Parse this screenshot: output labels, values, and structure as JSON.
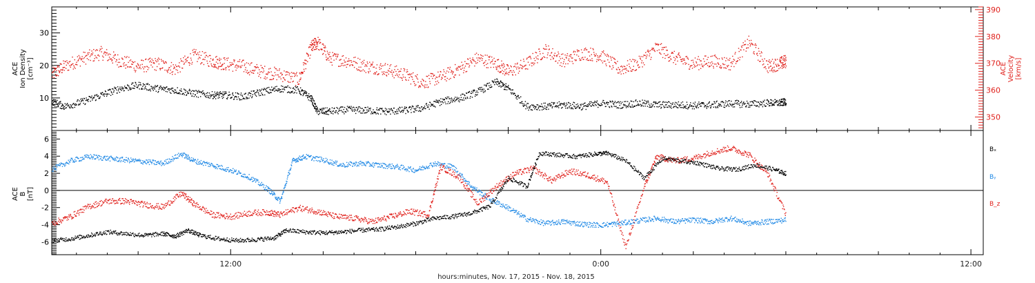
{
  "colors": {
    "black": "#000000",
    "red": "#e0201b",
    "blue": "#1e88e5"
  },
  "footer_label": "hours:minutes, Nov. 17, 2015 - Nov. 18, 2015",
  "chart_data": [
    {
      "type": "scatter",
      "panel": "plasma",
      "ylabel_left": [
        "ACE",
        "Ion Density",
        "[cm⁻³]"
      ],
      "ylabel_right": [
        "ACE",
        "Velocity",
        "[km/s]"
      ],
      "ylim_left": [
        0,
        38
      ],
      "yticks_left": [
        10,
        20,
        30
      ],
      "ylim_right": [
        345,
        391
      ],
      "yticks_right": [
        350,
        360,
        370,
        380,
        390
      ],
      "xlim_hours": [
        6.2,
        36.4
      ],
      "xticks": [
        {
          "label": "12:00",
          "hour": 12
        },
        {
          "label": "0:00",
          "hour": 24
        },
        {
          "label": "12:00",
          "hour": 36
        }
      ],
      "series": [
        {
          "axis": "left",
          "color": "#000000",
          "x": [
            6.2,
            6.6,
            7.2,
            7.8,
            8.4,
            9.0,
            9.6,
            10.2,
            10.8,
            11.4,
            11.8,
            12.4,
            13.0,
            13.6,
            14.2,
            14.6,
            14.8,
            15.2,
            15.8,
            16.4,
            17.0,
            17.6,
            18.2,
            18.8,
            19.4,
            20.0,
            20.6,
            21.0,
            21.6,
            22.2,
            22.8,
            23.4,
            24.0,
            24.6,
            25.2,
            25.8,
            26.4,
            27.0,
            27.6,
            28.2,
            28.8,
            29.4,
            29.8,
            30.0
          ],
          "y": [
            9,
            7.5,
            9,
            11,
            13,
            14,
            13,
            12.5,
            11.5,
            11,
            11,
            10.5,
            12,
            13,
            12.5,
            10,
            6,
            6,
            6.5,
            6.3,
            6,
            6.3,
            7,
            9,
            10,
            12,
            15,
            13,
            7.5,
            7.5,
            8,
            7.5,
            8.5,
            8,
            8.5,
            8,
            8,
            7.8,
            8,
            8.4,
            8.2,
            8.6,
            8.6,
            9
          ]
        },
        {
          "axis": "right",
          "color": "#e0201b",
          "x": [
            6.2,
            6.6,
            7.2,
            7.8,
            8.4,
            9.0,
            9.6,
            10.2,
            10.8,
            11.4,
            11.8,
            12.4,
            13.0,
            13.6,
            14.2,
            14.6,
            14.8,
            15.2,
            15.8,
            16.4,
            17.0,
            17.6,
            18.2,
            18.8,
            19.4,
            20.0,
            20.6,
            21.0,
            21.6,
            22.2,
            22.8,
            23.4,
            24.0,
            24.6,
            25.2,
            25.8,
            26.4,
            27.0,
            27.6,
            28.2,
            28.8,
            29.4,
            29.8,
            30.0
          ],
          "y": [
            366,
            369,
            372,
            374,
            371,
            369,
            370,
            368,
            373,
            371,
            370,
            369,
            367,
            366,
            364,
            376,
            378,
            372,
            371,
            369,
            368,
            366,
            363,
            365,
            368,
            372,
            370,
            367,
            370,
            375,
            371,
            374,
            373,
            368,
            370,
            376,
            372,
            370,
            371,
            370,
            378,
            369,
            370,
            371
          ]
        }
      ]
    },
    {
      "type": "scatter",
      "panel": "magnetic-field",
      "ylabel_left": [
        "ACE",
        "B",
        "[nT]"
      ],
      "ylim": [
        -7.5,
        7
      ],
      "yticks": [
        -6,
        -4,
        -2,
        0,
        2,
        4,
        6
      ],
      "xlim_hours": [
        6.2,
        36.4
      ],
      "xticks": [
        {
          "label": "12:00",
          "hour": 12
        },
        {
          "label": "0:00",
          "hour": 24
        },
        {
          "label": "12:00",
          "hour": 36
        }
      ],
      "legend": [
        "Bₓ",
        "Bᵧ",
        "B_z"
      ],
      "series": [
        {
          "name": "Bₓ",
          "color": "#000000",
          "x": [
            6.2,
            6.8,
            7.4,
            8.0,
            8.6,
            9.2,
            9.8,
            10.2,
            10.6,
            11.0,
            11.6,
            12.2,
            12.8,
            13.4,
            13.8,
            14.4,
            15.0,
            15.6,
            16.2,
            16.8,
            17.4,
            18.0,
            18.6,
            19.2,
            19.8,
            20.4,
            21.0,
            21.6,
            22.0,
            22.6,
            23.2,
            23.8,
            24.2,
            24.8,
            25.4,
            26.0,
            26.6,
            27.2,
            27.8,
            28.4,
            29.0,
            29.6,
            30.0
          ],
          "y": [
            -5.8,
            -5.6,
            -5.2,
            -4.8,
            -5.0,
            -5.2,
            -5.0,
            -5.3,
            -4.6,
            -5.2,
            -5.6,
            -5.8,
            -5.7,
            -5.5,
            -4.6,
            -4.8,
            -4.9,
            -4.8,
            -4.6,
            -4.5,
            -4.2,
            -3.8,
            -3.2,
            -3.0,
            -2.6,
            -1.8,
            1.5,
            0.5,
            4.4,
            4.2,
            4.0,
            4.3,
            4.4,
            3.5,
            1.5,
            3.8,
            3.5,
            3.2,
            2.6,
            2.5,
            3.0,
            2.5,
            2.0
          ]
        },
        {
          "name": "Bᵧ",
          "color": "#1e88e5",
          "x": [
            6.2,
            6.8,
            7.4,
            8.0,
            8.6,
            9.2,
            9.8,
            10.4,
            10.8,
            11.4,
            12.0,
            12.6,
            13.2,
            13.6,
            14.0,
            14.4,
            15.0,
            15.6,
            16.2,
            16.8,
            17.4,
            18.0,
            18.6,
            19.2,
            19.8,
            20.4,
            21.0,
            21.6,
            22.2,
            22.8,
            23.4,
            24.0,
            24.6,
            25.2,
            25.8,
            26.4,
            27.0,
            27.6,
            28.2,
            28.8,
            29.4,
            30.0
          ],
          "y": [
            2.5,
            3.5,
            4.0,
            3.8,
            3.6,
            3.4,
            3.2,
            4.3,
            3.5,
            3.0,
            2.4,
            1.6,
            0.2,
            -1.2,
            3.5,
            4.0,
            3.6,
            3.0,
            3.2,
            3.0,
            2.8,
            2.4,
            3.2,
            2.8,
            0.5,
            -1.0,
            -2.0,
            -3.3,
            -3.8,
            -3.6,
            -3.9,
            -4.0,
            -3.8,
            -3.5,
            -3.2,
            -3.6,
            -3.4,
            -3.6,
            -3.2,
            -3.8,
            -3.6,
            -3.4
          ]
        },
        {
          "name": "B_z",
          "color": "#e0201b",
          "x": [
            6.2,
            6.8,
            7.4,
            8.0,
            8.6,
            9.2,
            9.8,
            10.4,
            10.8,
            11.4,
            12.0,
            12.6,
            13.2,
            13.6,
            14.2,
            14.8,
            15.4,
            16.0,
            16.6,
            17.2,
            17.8,
            18.4,
            18.8,
            19.4,
            20.0,
            20.6,
            21.2,
            21.8,
            22.4,
            23.0,
            23.6,
            24.2,
            24.8,
            25.4,
            25.8,
            26.4,
            27.0,
            27.6,
            28.2,
            28.8,
            29.4,
            30.0
          ],
          "y": [
            -3.8,
            -3.0,
            -1.8,
            -1.2,
            -1.2,
            -1.6,
            -1.9,
            -0.3,
            -1.5,
            -2.8,
            -3.0,
            -2.6,
            -2.5,
            -2.8,
            -2.0,
            -2.4,
            -3.0,
            -3.2,
            -3.6,
            -3.0,
            -2.4,
            -2.8,
            2.8,
            1.6,
            -1.5,
            0.5,
            2.0,
            2.6,
            1.2,
            2.3,
            1.8,
            1.0,
            -6.6,
            0.5,
            4.0,
            3.5,
            3.8,
            4.5,
            5.0,
            4.2,
            2.0,
            -2.8
          ]
        }
      ]
    }
  ]
}
